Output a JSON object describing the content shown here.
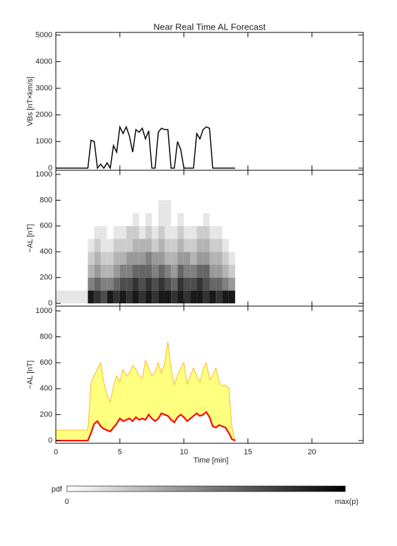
{
  "chart_data": [
    {
      "type": "line",
      "title": "Near Real Time AL Forecast",
      "ylabel": "VBs [nT×km/s]",
      "xlim": [
        0,
        24
      ],
      "ylim": [
        -80,
        5100
      ],
      "yticks": [
        0,
        1000,
        2000,
        3000,
        4000,
        5000
      ],
      "color": "#000000",
      "x": [
        0,
        2.5,
        2.75,
        3.0,
        3.25,
        3.5,
        3.75,
        4.0,
        4.25,
        4.5,
        4.75,
        5.0,
        5.25,
        5.5,
        5.75,
        6.0,
        6.25,
        6.5,
        6.75,
        7.0,
        7.25,
        7.5,
        7.75,
        8.0,
        8.25,
        8.5,
        8.75,
        9.0,
        9.25,
        9.5,
        9.75,
        10.0,
        10.25,
        10.5,
        10.75,
        11.0,
        11.25,
        11.5,
        11.75,
        12.0,
        12.25,
        12.5,
        12.75,
        13.0,
        13.25,
        13.5,
        13.75,
        14.0
      ],
      "values": [
        0,
        0,
        1050,
        1000,
        0,
        150,
        0,
        200,
        0,
        850,
        600,
        1550,
        1300,
        1550,
        1200,
        600,
        1450,
        1350,
        1500,
        1100,
        1400,
        0,
        0,
        1350,
        1500,
        1450,
        1450,
        0,
        0,
        1000,
        700,
        0,
        0,
        0,
        0,
        1300,
        1100,
        1450,
        1550,
        1500,
        0,
        0,
        0,
        0,
        0,
        0,
        0,
        0
      ]
    },
    {
      "type": "heatmap",
      "ylabel": "−AL [nT]",
      "xlim": [
        0,
        24
      ],
      "ylim": [
        -21,
        1032
      ],
      "yticks": [
        0,
        200,
        400,
        600,
        800,
        1000
      ],
      "x_edges": [
        0,
        2.5,
        3.0,
        3.5,
        4.0,
        4.5,
        5.0,
        5.5,
        6.0,
        6.5,
        7.0,
        7.5,
        8.0,
        8.5,
        9.0,
        9.5,
        10.0,
        10.5,
        11.0,
        11.5,
        12.0,
        12.5,
        13.0,
        13.5,
        14.0
      ],
      "y_edges": [
        0,
        100,
        200,
        300,
        400,
        500,
        600,
        700,
        800
      ],
      "z": [
        [
          0.1,
          0,
          0,
          0,
          0,
          0,
          0,
          0
        ],
        [
          0.9,
          0.5,
          0.3,
          0.2,
          0.1,
          0,
          0,
          0
        ],
        [
          0.8,
          0.6,
          0.4,
          0.3,
          0.2,
          0.1,
          0,
          0
        ],
        [
          0.7,
          0.5,
          0.3,
          0.2,
          0.1,
          0.1,
          0,
          0
        ],
        [
          0.9,
          0.5,
          0.3,
          0.2,
          0.1,
          0,
          0,
          0
        ],
        [
          0.8,
          0.6,
          0.4,
          0.3,
          0.2,
          0.1,
          0,
          0
        ],
        [
          0.9,
          0.7,
          0.5,
          0.3,
          0.2,
          0.1,
          0,
          0
        ],
        [
          0.8,
          0.7,
          0.5,
          0.4,
          0.2,
          0.2,
          0,
          0
        ],
        [
          0.9,
          0.8,
          0.6,
          0.4,
          0.3,
          0.2,
          0.1,
          0
        ],
        [
          0.8,
          0.7,
          0.6,
          0.4,
          0.3,
          0.1,
          0,
          0
        ],
        [
          0.9,
          0.8,
          0.6,
          0.5,
          0.3,
          0.2,
          0.1,
          0
        ],
        [
          0.8,
          0.7,
          0.5,
          0.4,
          0.2,
          0.1,
          0,
          0
        ],
        [
          0.9,
          0.8,
          0.6,
          0.4,
          0.3,
          0.2,
          0.1,
          0.1
        ],
        [
          0.9,
          0.7,
          0.5,
          0.3,
          0.2,
          0.1,
          0.1,
          0.1
        ],
        [
          0.8,
          0.6,
          0.4,
          0.3,
          0.2,
          0.1,
          0,
          0
        ],
        [
          0.9,
          0.8,
          0.6,
          0.4,
          0.3,
          0.2,
          0.1,
          0
        ],
        [
          0.8,
          0.7,
          0.5,
          0.4,
          0.2,
          0.1,
          0,
          0
        ],
        [
          0.9,
          0.7,
          0.5,
          0.3,
          0.2,
          0.1,
          0,
          0
        ],
        [
          0.9,
          0.8,
          0.6,
          0.4,
          0.3,
          0.2,
          0,
          0
        ],
        [
          0.8,
          0.7,
          0.6,
          0.4,
          0.3,
          0.2,
          0.1,
          0
        ],
        [
          0.9,
          0.6,
          0.4,
          0.3,
          0.2,
          0.1,
          0,
          0
        ],
        [
          0.8,
          0.6,
          0.4,
          0.3,
          0.2,
          0.1,
          0,
          0
        ],
        [
          0.9,
          0.5,
          0.3,
          0.2,
          0.1,
          0,
          0,
          0
        ],
        [
          0.9,
          0.4,
          0.2,
          0.1,
          0,
          0,
          0,
          0
        ]
      ],
      "colorbar": {
        "label": "pdf",
        "min_label": "0",
        "max_label": "max(p)"
      }
    },
    {
      "type": "band",
      "ylabel": "−AL [nT]",
      "xlabel": "Time [min]",
      "xlim": [
        0,
        24
      ],
      "xticks": [
        0,
        5,
        10,
        15,
        20
      ],
      "ylim": [
        -21,
        1037
      ],
      "yticks": [
        0,
        200,
        400,
        600,
        800,
        1000
      ],
      "color": "#ff0000",
      "band_color": "#ffff80",
      "band_edge_color": "#ffa500",
      "x": [
        0,
        2.5,
        2.75,
        3.0,
        3.25,
        3.5,
        3.75,
        4.0,
        4.25,
        4.5,
        4.75,
        5.0,
        5.25,
        5.5,
        5.75,
        6.0,
        6.25,
        6.5,
        6.75,
        7.0,
        7.25,
        7.5,
        7.75,
        8.0,
        8.25,
        8.5,
        8.75,
        9.0,
        9.25,
        9.5,
        9.75,
        10.0,
        10.25,
        10.5,
        10.75,
        11.0,
        11.25,
        11.5,
        11.75,
        12.0,
        12.25,
        12.5,
        12.75,
        13.0,
        13.25,
        13.5,
        13.75,
        14.0
      ],
      "values": [
        0,
        0,
        60,
        130,
        150,
        110,
        90,
        80,
        70,
        100,
        130,
        170,
        150,
        160,
        170,
        150,
        180,
        160,
        170,
        160,
        200,
        170,
        150,
        170,
        210,
        200,
        190,
        160,
        140,
        180,
        200,
        180,
        150,
        170,
        190,
        210,
        190,
        200,
        220,
        180,
        110,
        100,
        120,
        110,
        100,
        60,
        10,
        0
      ],
      "upper_values": [
        80,
        80,
        450,
        500,
        550,
        600,
        450,
        350,
        300,
        420,
        500,
        450,
        550,
        500,
        520,
        580,
        550,
        500,
        480,
        620,
        560,
        500,
        530,
        600,
        520,
        600,
        760,
        550,
        430,
        500,
        560,
        600,
        430,
        500,
        560,
        500,
        450,
        550,
        600,
        470,
        500,
        560,
        450,
        420,
        430,
        400,
        100,
        0
      ]
    }
  ]
}
